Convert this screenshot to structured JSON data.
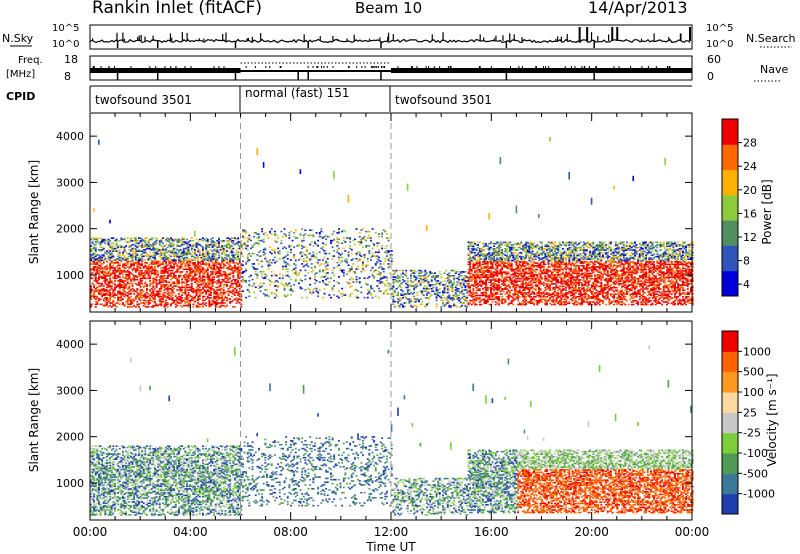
{
  "header": {
    "station": "Rankin Inlet (fitACF)",
    "beam": "Beam 10",
    "date": "14/Apr/2013"
  },
  "chart_data": [
    {
      "type": "line",
      "panel": "noise",
      "labels": {
        "left": "N.Sky",
        "right": "N.Search",
        "right_style": "dotted"
      },
      "y_ticks_left": [
        "10^5",
        "10^0"
      ],
      "y_ticks_right": [
        "10^5",
        "10^0"
      ],
      "scale": "log"
    },
    {
      "type": "line",
      "panel": "frequency",
      "labels": {
        "left_top": "Freq.",
        "left_bottom": "[MHz]",
        "right": "Nave",
        "right_style": "dotted"
      },
      "y_ticks_left": [
        "18",
        "8"
      ],
      "y_ticks_right": [
        "60",
        "0"
      ],
      "ylim_left": [
        8,
        18
      ],
      "ylim_right": [
        0,
        60
      ]
    },
    {
      "type": "table",
      "panel": "cpid",
      "label": "CPID",
      "segments": [
        {
          "name": "twofsound 3501",
          "start_hr": 0,
          "end_hr": 6
        },
        {
          "name": "normal (fast) 151",
          "start_hr": 6,
          "end_hr": 12
        },
        {
          "name": "twofsound 3501",
          "start_hr": 12,
          "end_hr": 24
        }
      ]
    },
    {
      "type": "heatmap",
      "panel": "power",
      "ylabel": "Slant Range [km]",
      "ylim": [
        200,
        4500
      ],
      "y_ticks": [
        1000,
        2000,
        3000,
        4000
      ],
      "colorbar": {
        "label": "Power [dB]",
        "ticks": [
          "28",
          "24",
          "20",
          "16",
          "12",
          "8",
          "4"
        ],
        "range": [
          0,
          30
        ]
      },
      "colors": [
        "#0000dd",
        "#2f55b8",
        "#4f8f62",
        "#8ccc3c",
        "#ffb000",
        "#ff6a00",
        "#ee0000"
      ]
    },
    {
      "type": "heatmap",
      "panel": "velocity",
      "ylabel": "Slant Range [km]",
      "ylim": [
        200,
        4500
      ],
      "y_ticks": [
        1000,
        2000,
        3000,
        4000
      ],
      "colorbar": {
        "label": "Velocity [m s⁻¹]",
        "ticks": [
          "1000",
          "500",
          "100",
          "25",
          "-25",
          "-100",
          "-500",
          "-1000"
        ]
      },
      "colors": [
        "#1f3fb0",
        "#3a7a98",
        "#4f9a55",
        "#7ccf3a",
        "#c8c8c8",
        "#ffd8a0",
        "#ff9a20",
        "#ff6400",
        "#ee0000"
      ]
    }
  ],
  "x_axis": {
    "label": "Time UT",
    "ticks": [
      "00:00",
      "04:00",
      "08:00",
      "12:00",
      "16:00",
      "20:00",
      "00:00"
    ],
    "range_hr": [
      0,
      24
    ]
  }
}
